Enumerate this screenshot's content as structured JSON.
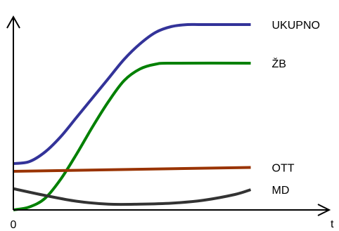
{
  "chart_data": {
    "type": "line",
    "title": "",
    "xlabel": "t",
    "ylabel": "",
    "x_tick_labels": [
      {
        "x": 0,
        "label": "0"
      }
    ],
    "xlim": [
      0,
      10
    ],
    "ylim": [
      0,
      10
    ],
    "grid": false,
    "axis_color": "#000000",
    "series": [
      {
        "name": "UKUPNO",
        "color": "#333399",
        "points": [
          [
            0.0,
            2.4
          ],
          [
            0.5,
            2.5
          ],
          [
            1.0,
            3.0
          ],
          [
            1.5,
            3.8
          ],
          [
            2.0,
            4.8
          ],
          [
            2.5,
            5.8
          ],
          [
            3.0,
            6.8
          ],
          [
            3.5,
            7.8
          ],
          [
            4.0,
            8.6
          ],
          [
            4.5,
            9.2
          ],
          [
            5.0,
            9.5
          ],
          [
            5.5,
            9.6
          ],
          [
            6.0,
            9.6
          ],
          [
            7.5,
            9.6
          ]
        ]
      },
      {
        "name": "ŽB",
        "color": "#008000",
        "points": [
          [
            0.0,
            0.0
          ],
          [
            0.5,
            0.15
          ],
          [
            1.0,
            0.6
          ],
          [
            1.5,
            1.6
          ],
          [
            2.0,
            2.9
          ],
          [
            2.5,
            4.3
          ],
          [
            3.0,
            5.6
          ],
          [
            3.5,
            6.7
          ],
          [
            4.0,
            7.3
          ],
          [
            4.5,
            7.55
          ],
          [
            5.0,
            7.6
          ],
          [
            7.5,
            7.6
          ]
        ]
      },
      {
        "name": "OTT",
        "color": "#993300",
        "points": [
          [
            0.0,
            2.0
          ],
          [
            7.5,
            2.2
          ]
        ]
      },
      {
        "name": "MD",
        "color": "#333333",
        "points": [
          [
            0.0,
            1.1
          ],
          [
            1.0,
            0.75
          ],
          [
            2.0,
            0.45
          ],
          [
            3.0,
            0.3
          ],
          [
            4.0,
            0.3
          ],
          [
            5.0,
            0.35
          ],
          [
            6.0,
            0.5
          ],
          [
            7.0,
            0.8
          ],
          [
            7.5,
            1.05
          ]
        ]
      }
    ]
  }
}
